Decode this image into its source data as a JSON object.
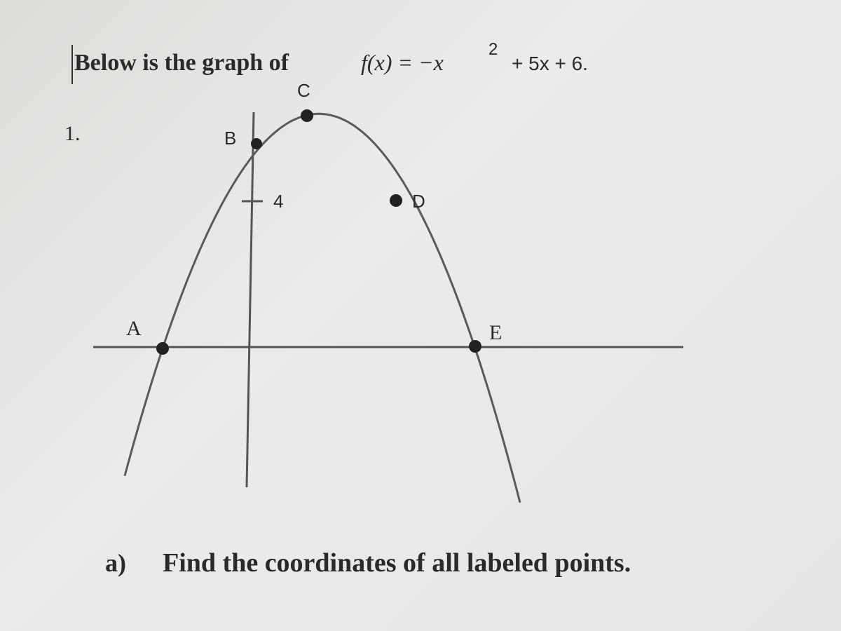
{
  "header": {
    "prefix": "Below is the graph of",
    "function": "f(x) = −x",
    "exponent": "2",
    "rest": "+ 5x + 6."
  },
  "problem": {
    "number": "1.",
    "tick_label": "4",
    "points": {
      "A": "A",
      "B": "B",
      "C": "C",
      "D": "D",
      "E": "E"
    },
    "question": {
      "letter": "a)",
      "text": "Find the coordinates of all labeled points."
    }
  }
}
